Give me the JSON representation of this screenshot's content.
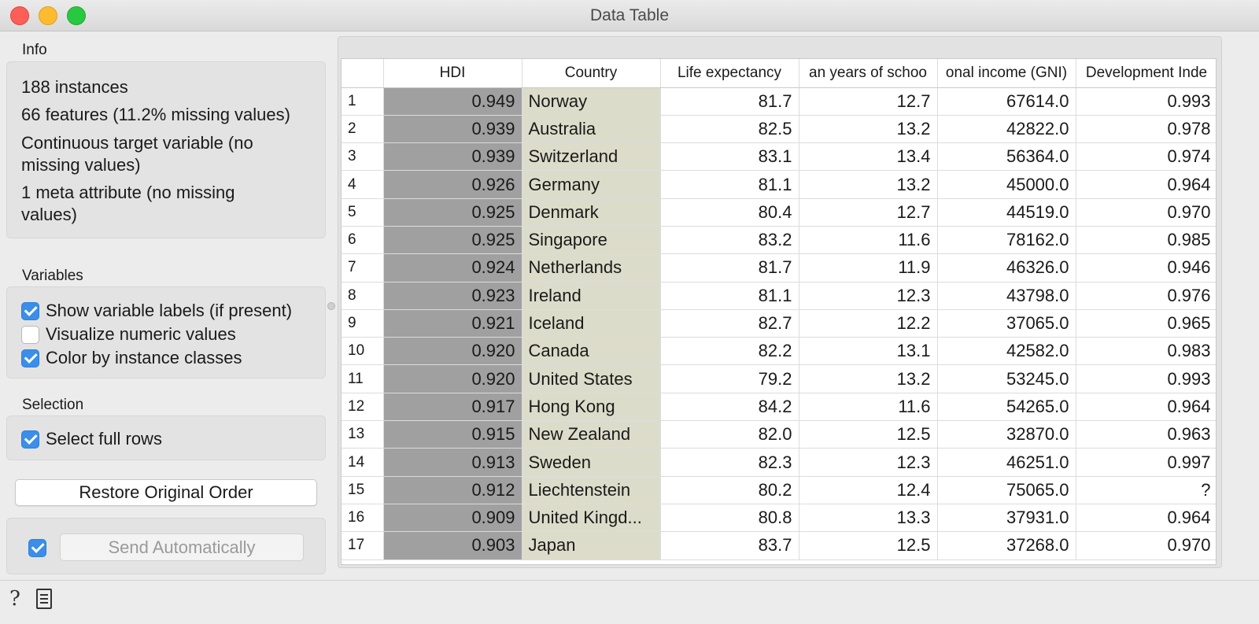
{
  "window": {
    "title": "Data Table"
  },
  "info": {
    "label": "Info",
    "lines": [
      "188 instances",
      "66 features (11.2% missing values)",
      "Continuous target variable (no missing values)",
      "1 meta attribute (no missing values)"
    ]
  },
  "variables": {
    "label": "Variables",
    "options": [
      {
        "label": "Show variable labels (if present)",
        "checked": true
      },
      {
        "label": "Visualize numeric values",
        "checked": false
      },
      {
        "label": "Color by instance classes",
        "checked": true
      }
    ]
  },
  "selection": {
    "label": "Selection",
    "options": [
      {
        "label": "Select full rows",
        "checked": true
      }
    ]
  },
  "buttons": {
    "restore": "Restore Original Order",
    "send": "Send Automatically",
    "send_checked": true
  },
  "colors": {
    "hdi_cell": "#a0a0a0",
    "country_cell": "#dcdcca",
    "checkbox_on": "#3b8eea"
  },
  "table": {
    "columns": [
      "",
      "HDI",
      "Country",
      "Life expectancy",
      "an years of schoo",
      "onal income (GNI)",
      "Development Inde"
    ],
    "rows": [
      [
        "1",
        "0.949",
        "Norway",
        "81.7",
        "12.7",
        "67614.0",
        "0.993"
      ],
      [
        "2",
        "0.939",
        "Australia",
        "82.5",
        "13.2",
        "42822.0",
        "0.978"
      ],
      [
        "3",
        "0.939",
        "Switzerland",
        "83.1",
        "13.4",
        "56364.0",
        "0.974"
      ],
      [
        "4",
        "0.926",
        "Germany",
        "81.1",
        "13.2",
        "45000.0",
        "0.964"
      ],
      [
        "5",
        "0.925",
        "Denmark",
        "80.4",
        "12.7",
        "44519.0",
        "0.970"
      ],
      [
        "6",
        "0.925",
        "Singapore",
        "83.2",
        "11.6",
        "78162.0",
        "0.985"
      ],
      [
        "7",
        "0.924",
        "Netherlands",
        "81.7",
        "11.9",
        "46326.0",
        "0.946"
      ],
      [
        "8",
        "0.923",
        "Ireland",
        "81.1",
        "12.3",
        "43798.0",
        "0.976"
      ],
      [
        "9",
        "0.921",
        "Iceland",
        "82.7",
        "12.2",
        "37065.0",
        "0.965"
      ],
      [
        "10",
        "0.920",
        "Canada",
        "82.2",
        "13.1",
        "42582.0",
        "0.983"
      ],
      [
        "11",
        "0.920",
        "United States",
        "79.2",
        "13.2",
        "53245.0",
        "0.993"
      ],
      [
        "12",
        "0.917",
        "Hong Kong",
        "84.2",
        "11.6",
        "54265.0",
        "0.964"
      ],
      [
        "13",
        "0.915",
        "New Zealand",
        "82.0",
        "12.5",
        "32870.0",
        "0.963"
      ],
      [
        "14",
        "0.913",
        "Sweden",
        "82.3",
        "12.3",
        "46251.0",
        "0.997"
      ],
      [
        "15",
        "0.912",
        "Liechtenstein",
        "80.2",
        "12.4",
        "75065.0",
        "?"
      ],
      [
        "16",
        "0.909",
        "United Kingd...",
        "80.8",
        "13.3",
        "37931.0",
        "0.964"
      ],
      [
        "17",
        "0.903",
        "Japan",
        "83.7",
        "12.5",
        "37268.0",
        "0.970"
      ]
    ]
  },
  "statusbar": {
    "help_icon": "question-mark-icon",
    "report_icon": "document-icon"
  }
}
